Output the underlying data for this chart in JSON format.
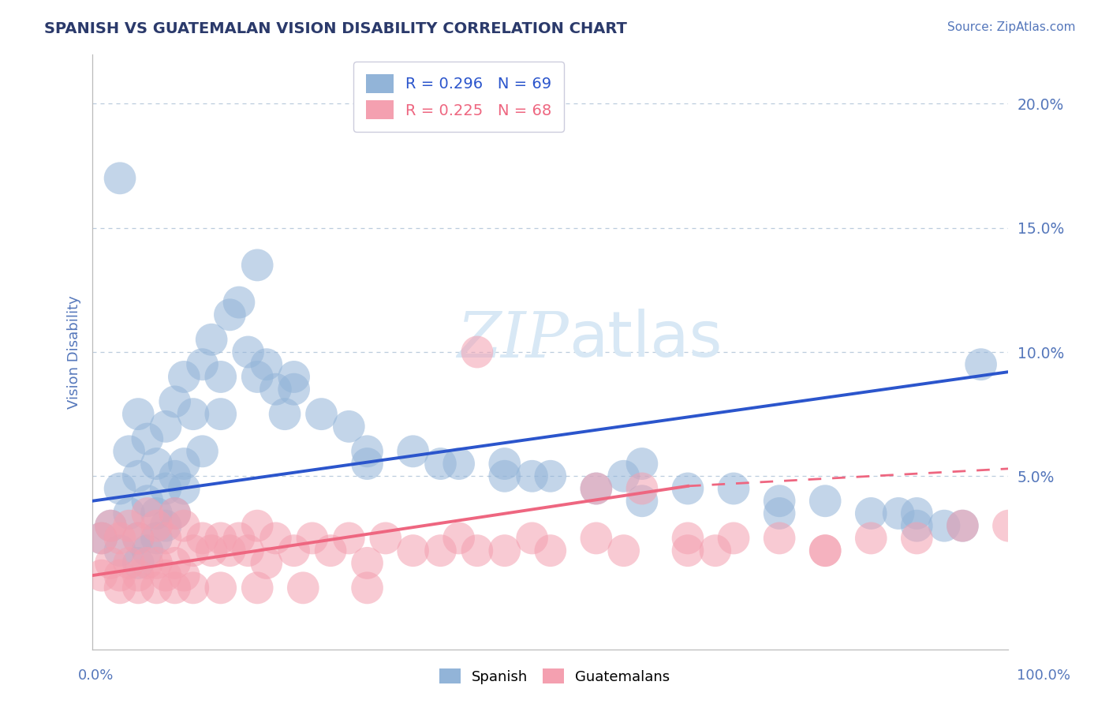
{
  "title": "SPANISH VS GUATEMALAN VISION DISABILITY CORRELATION CHART",
  "source": "Source: ZipAtlas.com",
  "ylabel": "Vision Disability",
  "xlim": [
    0,
    100
  ],
  "ylim": [
    -2,
    22
  ],
  "ytick_positions": [
    5,
    10,
    15,
    20
  ],
  "ytick_labels": [
    "5.0%",
    "10.0%",
    "15.0%",
    "20.0%"
  ],
  "legend1_r": "R = 0.296",
  "legend1_n": "N = 69",
  "legend2_r": "R = 0.225",
  "legend2_n": "N = 68",
  "blue_color": "#92B4D8",
  "pink_color": "#F4A0B0",
  "title_color": "#2B3A6B",
  "axis_label_color": "#5577BB",
  "blue_line_color": "#2B55CC",
  "pink_line_color": "#EE6680",
  "grid_color": "#BBCCDD",
  "spine_color": "#BBBBBB",
  "watermark_color": "#D8E8F5",
  "blue_line_y0": 4.0,
  "blue_line_y1": 9.2,
  "pink_line_y0": 1.0,
  "pink_line_y1_solid": 4.6,
  "pink_solid_end_x": 65,
  "pink_line_y1_dashed": 5.3,
  "spanish_x": [
    1,
    2,
    3,
    3,
    4,
    4,
    5,
    5,
    5,
    6,
    6,
    7,
    7,
    8,
    8,
    9,
    9,
    10,
    10,
    11,
    12,
    13,
    14,
    15,
    16,
    17,
    18,
    19,
    20,
    21,
    22,
    25,
    28,
    30,
    35,
    38,
    40,
    45,
    48,
    50,
    55,
    58,
    60,
    65,
    70,
    75,
    80,
    85,
    88,
    90,
    93,
    95,
    97,
    5,
    6,
    7,
    8,
    9,
    10,
    12,
    14,
    18,
    22,
    30,
    45,
    60,
    75,
    90,
    3
  ],
  "spanish_y": [
    2.5,
    3.0,
    2.0,
    4.5,
    3.5,
    6.0,
    2.5,
    5.0,
    7.5,
    4.0,
    6.5,
    3.5,
    5.5,
    4.5,
    7.0,
    5.0,
    8.0,
    5.5,
    9.0,
    7.5,
    9.5,
    10.5,
    9.0,
    11.5,
    12.0,
    10.0,
    13.5,
    9.5,
    8.5,
    7.5,
    9.0,
    7.5,
    7.0,
    6.0,
    6.0,
    5.5,
    5.5,
    5.5,
    5.0,
    5.0,
    4.5,
    5.0,
    5.5,
    4.5,
    4.5,
    4.0,
    4.0,
    3.5,
    3.5,
    3.5,
    3.0,
    3.0,
    9.5,
    1.5,
    2.0,
    2.5,
    3.0,
    3.5,
    4.5,
    6.0,
    7.5,
    9.0,
    8.5,
    5.5,
    5.0,
    4.0,
    3.5,
    3.0,
    17.0
  ],
  "guatemalan_x": [
    1,
    1,
    2,
    2,
    3,
    3,
    4,
    4,
    5,
    5,
    6,
    6,
    7,
    7,
    8,
    8,
    9,
    9,
    10,
    10,
    11,
    12,
    13,
    14,
    15,
    16,
    17,
    18,
    19,
    20,
    22,
    24,
    26,
    28,
    30,
    32,
    35,
    38,
    40,
    42,
    45,
    48,
    50,
    55,
    58,
    60,
    65,
    68,
    70,
    75,
    80,
    85,
    90,
    95,
    100,
    3,
    5,
    7,
    9,
    11,
    14,
    18,
    23,
    30,
    42,
    55,
    65,
    80
  ],
  "guatemalan_y": [
    1.0,
    2.5,
    1.5,
    3.0,
    1.0,
    2.5,
    1.5,
    3.0,
    1.0,
    2.5,
    1.5,
    3.5,
    1.5,
    3.0,
    1.0,
    2.5,
    1.5,
    3.5,
    1.0,
    3.0,
    2.0,
    2.5,
    2.0,
    2.5,
    2.0,
    2.5,
    2.0,
    3.0,
    1.5,
    2.5,
    2.0,
    2.5,
    2.0,
    2.5,
    1.5,
    2.5,
    2.0,
    2.0,
    2.5,
    2.0,
    2.0,
    2.5,
    2.0,
    2.5,
    2.0,
    4.5,
    2.5,
    2.0,
    2.5,
    2.5,
    2.0,
    2.5,
    2.5,
    3.0,
    3.0,
    0.5,
    0.5,
    0.5,
    0.5,
    0.5,
    0.5,
    0.5,
    0.5,
    0.5,
    10.0,
    4.5,
    2.0,
    2.0
  ]
}
